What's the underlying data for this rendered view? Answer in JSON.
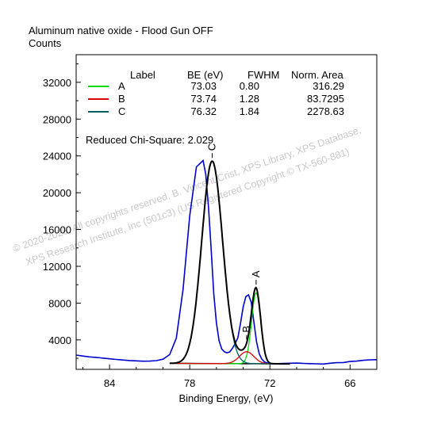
{
  "chart_data": {
    "type": "line",
    "title": "Aluminum native oxide - Flood Gun OFF",
    "ylabel": "Counts",
    "xlabel": "Binding Energy, (eV)",
    "xlim": [
      86.5,
      64
    ],
    "ylim": [
      800,
      35000
    ],
    "x_ticks": [
      84,
      78,
      72,
      66
    ],
    "y_ticks": [
      4000,
      8000,
      12000,
      16000,
      20000,
      24000,
      28000,
      32000
    ],
    "reversed_x": true,
    "legend": {
      "headers": [
        "Label",
        "BE (eV)",
        "FWHM",
        "Norm. Area"
      ],
      "rows": [
        {
          "label": "A",
          "be": "73.03",
          "fwhm": "0.80",
          "area": "316.29",
          "color": "#00dd00"
        },
        {
          "label": "B",
          "be": "73.74",
          "fwhm": "1.28",
          "area": "83.7295",
          "color": "#dd0000"
        },
        {
          "label": "C",
          "be": "76.32",
          "fwhm": "1.84",
          "area": "2278.63",
          "color": "#006060"
        }
      ]
    },
    "fit_text": "Reduced Chi-Square: 2.029",
    "peak_markers": [
      "C",
      "B",
      "A"
    ],
    "peaks": [
      {
        "name": "A",
        "center": 73.03,
        "fwhm": 0.8,
        "height": 7700,
        "color": "#00dd00"
      },
      {
        "name": "B",
        "center": 73.74,
        "fwhm": 1.28,
        "height": 1300,
        "color": "#dd0000"
      },
      {
        "name": "C",
        "center": 76.32,
        "fwhm": 1.84,
        "height": 22000,
        "color": "#006060"
      }
    ],
    "background": {
      "left_counts": 1500,
      "right_counts": 1350
    },
    "raw_data": {
      "x": [
        86.5,
        86,
        85.5,
        85,
        84.5,
        84,
        83.5,
        83,
        82.5,
        82,
        81.5,
        81,
        80.5,
        80,
        79.5,
        79,
        78.5,
        78,
        77.5,
        77,
        76.8,
        76.6,
        76.4,
        76.2,
        76,
        75.8,
        75.6,
        75.4,
        75.2,
        75,
        74.8,
        74.6,
        74.4,
        74.2,
        74,
        73.8,
        73.6,
        73.4,
        73.2,
        73,
        72.8,
        72.6,
        72.4,
        72.2,
        72,
        71.5,
        71,
        70.5,
        70,
        69.5,
        69,
        68.5,
        68,
        67.5,
        67,
        66.5,
        66,
        65.5,
        65,
        64.5,
        64
      ],
      "y": [
        2350,
        2250,
        2150,
        2100,
        2020,
        1950,
        1880,
        1820,
        1760,
        1720,
        1690,
        1700,
        1750,
        1900,
        2400,
        4200,
        9500,
        17500,
        22800,
        23500,
        22000,
        18500,
        14000,
        9000,
        5800,
        3900,
        3000,
        2700,
        2600,
        2700,
        3100,
        3600,
        4200,
        5800,
        7600,
        8700,
        8900,
        8100,
        6000,
        3800,
        2500,
        1900,
        1600,
        1500,
        1450,
        1420,
        1440,
        1460,
        1480,
        1450,
        1420,
        1400,
        1380,
        1460,
        1520,
        1540,
        1650,
        1700,
        1780,
        1830,
        1850
      ]
    }
  },
  "watermark": {
    "line1": "© 2020-2025, All copyrights reserved, B. Vincent Crist, XPS Library, XPS Database,",
    "line2": "XPS Research Institute, Inc (501c3) (US Registered Copyright © TX-560-881)"
  }
}
